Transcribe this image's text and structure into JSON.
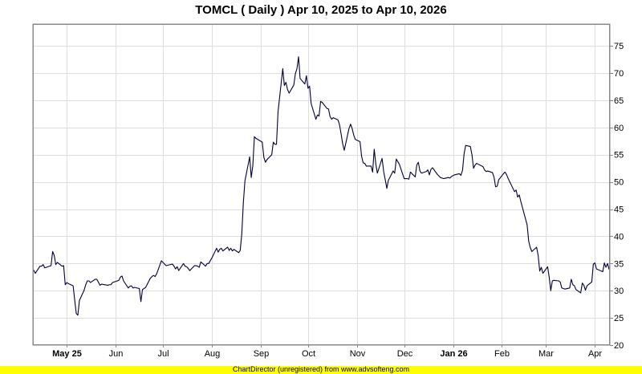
{
  "footer": {
    "text": "ChartDirector (unregistered) from www.advsofteng.com",
    "bg_color": "#ffff00"
  },
  "colors": {
    "line": "#000033",
    "grid": "#dddddd",
    "frame": "#888888"
  },
  "chart_data": {
    "type": "line",
    "title": "TOMCL ( Daily ) Apr 10, 2025 to Apr 10, 2026",
    "xlabel": "",
    "ylabel": "",
    "ylim": [
      20,
      79
    ],
    "grid": true,
    "y_axis_side": "right",
    "y_ticks": [
      20,
      25,
      30,
      35,
      40,
      45,
      50,
      55,
      60,
      65,
      70,
      75
    ],
    "x_ticks": [
      {
        "label": "May 25",
        "date": "2025-05-01",
        "bold": true
      },
      {
        "label": "Jun",
        "date": "2025-06-01",
        "bold": false
      },
      {
        "label": "Jul",
        "date": "2025-07-01",
        "bold": false
      },
      {
        "label": "Aug",
        "date": "2025-08-01",
        "bold": false
      },
      {
        "label": "Sep",
        "date": "2025-09-01",
        "bold": false
      },
      {
        "label": "Oct",
        "date": "2025-10-01",
        "bold": false
      },
      {
        "label": "Nov",
        "date": "2025-11-01",
        "bold": false
      },
      {
        "label": "Dec",
        "date": "2025-12-01",
        "bold": false
      },
      {
        "label": "Jan 26",
        "date": "2026-01-01",
        "bold": true
      },
      {
        "label": "Feb",
        "date": "2026-02-01",
        "bold": false
      },
      {
        "label": "Mar",
        "date": "2026-03-01",
        "bold": false
      },
      {
        "label": "Apr",
        "date": "2026-04-01",
        "bold": false
      }
    ],
    "series": [
      {
        "name": "",
        "points": [
          [
            "2025-04-10",
            33.8
          ],
          [
            "2025-04-11",
            33.2
          ],
          [
            "2025-04-14",
            34.5
          ],
          [
            "2025-04-15",
            34.5
          ],
          [
            "2025-04-16",
            34.8
          ],
          [
            "2025-04-17",
            34.2
          ],
          [
            "2025-04-21",
            34.6
          ],
          [
            "2025-04-22",
            37.2
          ],
          [
            "2025-04-23",
            36.5
          ],
          [
            "2025-04-24",
            34.8
          ],
          [
            "2025-04-25",
            35.2
          ],
          [
            "2025-04-28",
            34.5
          ],
          [
            "2025-04-29",
            34.6
          ],
          [
            "2025-04-30",
            31.1
          ],
          [
            "2025-05-01",
            31.5
          ],
          [
            "2025-05-02",
            31.3
          ],
          [
            "2025-05-05",
            30.9
          ],
          [
            "2025-05-06",
            28.3
          ],
          [
            "2025-05-07",
            25.8
          ],
          [
            "2025-05-08",
            25.5
          ],
          [
            "2025-05-09",
            28.2
          ],
          [
            "2025-05-12",
            30.1
          ],
          [
            "2025-05-13",
            31.1
          ],
          [
            "2025-05-14",
            31.8
          ],
          [
            "2025-05-15",
            31.8
          ],
          [
            "2025-05-16",
            31.5
          ],
          [
            "2025-05-19",
            32.1
          ],
          [
            "2025-05-20",
            32.1
          ],
          [
            "2025-05-21",
            31.6
          ],
          [
            "2025-05-22",
            31.0
          ],
          [
            "2025-05-23",
            31.2
          ],
          [
            "2025-05-27",
            31.0
          ],
          [
            "2025-05-28",
            31.1
          ],
          [
            "2025-05-29",
            31.1
          ],
          [
            "2025-05-30",
            31.5
          ],
          [
            "2025-06-02",
            31.8
          ],
          [
            "2025-06-03",
            31.9
          ],
          [
            "2025-06-04",
            32.5
          ],
          [
            "2025-06-05",
            32.7
          ],
          [
            "2025-06-06",
            31.8
          ],
          [
            "2025-06-09",
            30.5
          ],
          [
            "2025-06-10",
            30.8
          ],
          [
            "2025-06-11",
            30.9
          ],
          [
            "2025-06-12",
            30.5
          ],
          [
            "2025-06-13",
            30.6
          ],
          [
            "2025-06-16",
            30.4
          ],
          [
            "2025-06-17",
            28.0
          ],
          [
            "2025-06-18",
            30.2
          ],
          [
            "2025-06-20",
            30.6
          ],
          [
            "2025-06-23",
            32.3
          ],
          [
            "2025-06-24",
            32.6
          ],
          [
            "2025-06-25",
            32.8
          ],
          [
            "2025-06-26",
            32.6
          ],
          [
            "2025-06-27",
            33.1
          ],
          [
            "2025-06-30",
            35.5
          ],
          [
            "2025-07-01",
            35.2
          ],
          [
            "2025-07-02",
            34.9
          ],
          [
            "2025-07-03",
            34.6
          ],
          [
            "2025-07-07",
            34.9
          ],
          [
            "2025-07-08",
            34.5
          ],
          [
            "2025-07-09",
            34.0
          ],
          [
            "2025-07-10",
            34.4
          ],
          [
            "2025-07-11",
            33.7
          ],
          [
            "2025-07-14",
            35.0
          ],
          [
            "2025-07-15",
            34.5
          ],
          [
            "2025-07-16",
            34.4
          ],
          [
            "2025-07-17",
            34.1
          ],
          [
            "2025-07-18",
            33.7
          ],
          [
            "2025-07-21",
            34.6
          ],
          [
            "2025-07-22",
            34.6
          ],
          [
            "2025-07-23",
            34.5
          ],
          [
            "2025-07-24",
            34.3
          ],
          [
            "2025-07-25",
            35.3
          ],
          [
            "2025-07-28",
            34.5
          ],
          [
            "2025-07-29",
            35.0
          ],
          [
            "2025-07-30",
            35.0
          ],
          [
            "2025-07-31",
            35.5
          ],
          [
            "2025-08-01",
            36.0
          ],
          [
            "2025-08-04",
            37.8
          ],
          [
            "2025-08-05",
            37.1
          ],
          [
            "2025-08-06",
            37.6
          ],
          [
            "2025-08-07",
            37.8
          ],
          [
            "2025-08-08",
            37.3
          ],
          [
            "2025-08-11",
            38.0
          ],
          [
            "2025-08-12",
            37.4
          ],
          [
            "2025-08-13",
            37.8
          ],
          [
            "2025-08-14",
            37.3
          ],
          [
            "2025-08-15",
            37.6
          ],
          [
            "2025-08-18",
            37.0
          ],
          [
            "2025-08-19",
            37.4
          ],
          [
            "2025-08-20",
            40.5
          ],
          [
            "2025-08-21",
            46.2
          ],
          [
            "2025-08-22",
            50.2
          ],
          [
            "2025-08-25",
            54.6
          ],
          [
            "2025-08-26",
            50.8
          ],
          [
            "2025-08-27",
            53.0
          ],
          [
            "2025-08-28",
            58.3
          ],
          [
            "2025-08-29",
            58.0
          ],
          [
            "2025-09-02",
            57.3
          ],
          [
            "2025-09-03",
            54.5
          ],
          [
            "2025-09-04",
            53.6
          ],
          [
            "2025-09-05",
            54.1
          ],
          [
            "2025-09-08",
            55.0
          ],
          [
            "2025-09-09",
            57.3
          ],
          [
            "2025-09-10",
            56.9
          ],
          [
            "2025-09-11",
            56.9
          ],
          [
            "2025-09-12",
            62.9
          ],
          [
            "2025-09-15",
            70.8
          ],
          [
            "2025-09-16",
            67.7
          ],
          [
            "2025-09-17",
            68.3
          ],
          [
            "2025-09-18",
            67.0
          ],
          [
            "2025-09-19",
            66.3
          ],
          [
            "2025-09-22",
            67.8
          ],
          [
            "2025-09-23",
            69.9
          ],
          [
            "2025-09-24",
            70.8
          ],
          [
            "2025-09-25",
            73.0
          ],
          [
            "2025-09-26",
            69.0
          ],
          [
            "2025-09-29",
            68.0
          ],
          [
            "2025-09-30",
            69.5
          ],
          [
            "2025-10-01",
            67.2
          ],
          [
            "2025-10-02",
            67.6
          ],
          [
            "2025-10-03",
            64.4
          ],
          [
            "2025-10-06",
            61.5
          ],
          [
            "2025-10-07",
            62.3
          ],
          [
            "2025-10-08",
            62.1
          ],
          [
            "2025-10-09",
            64.8
          ],
          [
            "2025-10-10",
            64.6
          ],
          [
            "2025-10-13",
            63.5
          ],
          [
            "2025-10-14",
            63.4
          ],
          [
            "2025-10-15",
            62.0
          ],
          [
            "2025-10-16",
            61.5
          ],
          [
            "2025-10-17",
            61.8
          ],
          [
            "2025-10-20",
            61.4
          ],
          [
            "2025-10-21",
            60.5
          ],
          [
            "2025-10-22",
            58.8
          ],
          [
            "2025-10-23",
            57.0
          ],
          [
            "2025-10-24",
            55.8
          ],
          [
            "2025-10-27",
            59.8
          ],
          [
            "2025-10-28",
            60.6
          ],
          [
            "2025-10-29",
            59.8
          ],
          [
            "2025-10-30",
            58.6
          ],
          [
            "2025-10-31",
            57.8
          ],
          [
            "2025-11-03",
            57.4
          ],
          [
            "2025-11-04",
            54.7
          ],
          [
            "2025-11-05",
            53.5
          ],
          [
            "2025-11-06",
            53.4
          ],
          [
            "2025-11-07",
            52.9
          ],
          [
            "2025-11-10",
            52.9
          ],
          [
            "2025-11-11",
            51.8
          ],
          [
            "2025-11-12",
            56.0
          ],
          [
            "2025-11-13",
            53.3
          ],
          [
            "2025-11-14",
            51.6
          ],
          [
            "2025-11-17",
            54.3
          ],
          [
            "2025-11-18",
            51.9
          ],
          [
            "2025-11-19",
            50.4
          ],
          [
            "2025-11-20",
            48.8
          ],
          [
            "2025-11-21",
            50.3
          ],
          [
            "2025-11-24",
            52.0
          ],
          [
            "2025-11-25",
            51.6
          ],
          [
            "2025-11-26",
            54.2
          ],
          [
            "2025-11-28",
            53.2
          ],
          [
            "2025-12-01",
            50.6
          ],
          [
            "2025-12-02",
            50.6
          ],
          [
            "2025-12-03",
            50.6
          ],
          [
            "2025-12-04",
            50.5
          ],
          [
            "2025-12-05",
            51.8
          ],
          [
            "2025-12-08",
            50.9
          ],
          [
            "2025-12-09",
            53.1
          ],
          [
            "2025-12-10",
            53.6
          ],
          [
            "2025-12-11",
            52.0
          ],
          [
            "2025-12-12",
            51.6
          ],
          [
            "2025-12-15",
            51.9
          ],
          [
            "2025-12-16",
            52.2
          ],
          [
            "2025-12-17",
            51.3
          ],
          [
            "2025-12-18",
            52.3
          ],
          [
            "2025-12-19",
            52.6
          ],
          [
            "2025-12-22",
            51.4
          ],
          [
            "2025-12-23",
            51.1
          ],
          [
            "2025-12-24",
            50.8
          ],
          [
            "2025-12-26",
            50.6
          ],
          [
            "2025-12-29",
            50.8
          ],
          [
            "2025-12-30",
            50.7
          ],
          [
            "2025-12-31",
            51.0
          ],
          [
            "2026-01-02",
            51.3
          ],
          [
            "2026-01-05",
            51.5
          ],
          [
            "2026-01-06",
            51.2
          ],
          [
            "2026-01-07",
            52.1
          ],
          [
            "2026-01-08",
            55.1
          ],
          [
            "2026-01-09",
            56.7
          ],
          [
            "2026-01-12",
            56.5
          ],
          [
            "2026-01-13",
            55.0
          ],
          [
            "2026-01-14",
            52.5
          ],
          [
            "2026-01-15",
            53.1
          ],
          [
            "2026-01-16",
            53.4
          ],
          [
            "2026-01-20",
            52.8
          ],
          [
            "2026-01-21",
            52.2
          ],
          [
            "2026-01-22",
            51.9
          ],
          [
            "2026-01-23",
            52.0
          ],
          [
            "2026-01-26",
            51.7
          ],
          [
            "2026-01-27",
            50.9
          ],
          [
            "2026-01-28",
            49.1
          ],
          [
            "2026-01-29",
            49.2
          ],
          [
            "2026-01-30",
            50.4
          ],
          [
            "2026-02-02",
            51.5
          ],
          [
            "2026-02-03",
            51.8
          ],
          [
            "2026-02-04",
            51.3
          ],
          [
            "2026-02-05",
            50.6
          ],
          [
            "2026-02-06",
            50.0
          ],
          [
            "2026-02-09",
            48.2
          ],
          [
            "2026-02-10",
            48.5
          ],
          [
            "2026-02-11",
            47.2
          ],
          [
            "2026-02-12",
            47.6
          ],
          [
            "2026-02-13",
            46.4
          ],
          [
            "2026-02-17",
            42.1
          ],
          [
            "2026-02-18",
            39.1
          ],
          [
            "2026-02-19",
            37.9
          ],
          [
            "2026-02-20",
            37.2
          ],
          [
            "2026-02-23",
            38.0
          ],
          [
            "2026-02-24",
            36.5
          ],
          [
            "2026-02-25",
            33.6
          ],
          [
            "2026-02-26",
            34.3
          ],
          [
            "2026-02-27",
            33.2
          ],
          [
            "2026-03-02",
            34.4
          ],
          [
            "2026-03-03",
            32.5
          ],
          [
            "2026-03-04",
            30.0
          ],
          [
            "2026-03-05",
            31.8
          ],
          [
            "2026-03-06",
            31.9
          ],
          [
            "2026-03-09",
            31.8
          ],
          [
            "2026-03-10",
            31.6
          ],
          [
            "2026-03-11",
            30.5
          ],
          [
            "2026-03-12",
            30.4
          ],
          [
            "2026-03-13",
            30.3
          ],
          [
            "2026-03-16",
            30.5
          ],
          [
            "2026-03-17",
            32.1
          ],
          [
            "2026-03-18",
            31.1
          ],
          [
            "2026-03-19",
            30.9
          ],
          [
            "2026-03-20",
            30.2
          ],
          [
            "2026-03-23",
            29.6
          ],
          [
            "2026-03-24",
            31.4
          ],
          [
            "2026-03-25",
            31.0
          ],
          [
            "2026-03-26",
            30.1
          ],
          [
            "2026-03-27",
            30.9
          ],
          [
            "2026-03-30",
            31.6
          ],
          [
            "2026-03-31",
            34.9
          ],
          [
            "2026-04-01",
            35.1
          ],
          [
            "2026-04-02",
            34.0
          ],
          [
            "2026-04-06",
            33.5
          ],
          [
            "2026-04-07",
            35.1
          ],
          [
            "2026-04-08",
            34.3
          ],
          [
            "2026-04-09",
            35.0
          ],
          [
            "2026-04-10",
            33.9
          ]
        ]
      }
    ]
  }
}
